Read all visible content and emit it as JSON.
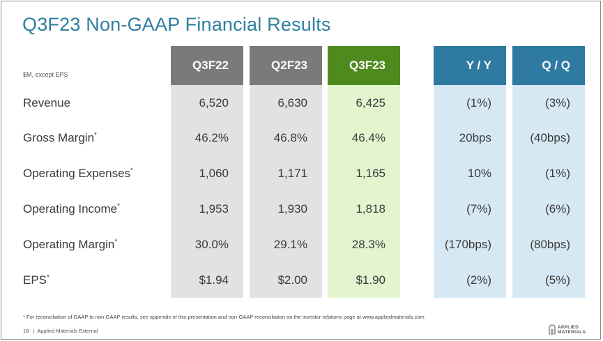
{
  "title": "Q3F23 Non-GAAP Financial Results",
  "units_note": "$M, except EPS",
  "colors": {
    "title": "#2f7fa0",
    "gray_head": "#7a7a7a",
    "gray_body": "#e2e2e0",
    "green_head": "#4f8a1f",
    "green_body": "#e3f5cf",
    "blue_head": "#2e7aa0",
    "blue_body": "#d6e8f3"
  },
  "columns": [
    "Q3F22",
    "Q2F23",
    "Q3F23",
    "Y / Y",
    "Q / Q"
  ],
  "rows": [
    {
      "label": "Revenue",
      "mark": "",
      "values": [
        "6,520",
        "6,630",
        "6,425",
        "(1%)",
        "(3%)"
      ]
    },
    {
      "label": "Gross Margin",
      "mark": "*",
      "values": [
        "46.2%",
        "46.8%",
        "46.4%",
        "20bps",
        "(40bps)"
      ]
    },
    {
      "label": "Operating Expenses",
      "mark": "*",
      "values": [
        "1,060",
        "1,171",
        "1,165",
        "10%",
        "(1%)"
      ]
    },
    {
      "label": "Operating Income",
      "mark": "*",
      "values": [
        "1,953",
        "1,930",
        "1,818",
        "(7%)",
        "(6%)"
      ]
    },
    {
      "label": "Operating Margin",
      "mark": "*",
      "values": [
        "30.0%",
        "29.1%",
        "28.3%",
        "(170bps)",
        "(80bps)"
      ]
    },
    {
      "label": "EPS",
      "mark": "*",
      "values": [
        "$1.94",
        "$2.00",
        "$1.90",
        "(2%)",
        "(5%)"
      ]
    }
  ],
  "footnote": "* For reconciliation of GAAP to non-GAAP results, see appendix of this presentation and non-GAAP reconciliation on the investor relations page at www.appliedmaterials.com",
  "footer": {
    "page": "18",
    "separator": "|",
    "label": "Applied Materials External"
  },
  "logo": {
    "line1": "APPLIED",
    "line2": "MATERIALS."
  }
}
